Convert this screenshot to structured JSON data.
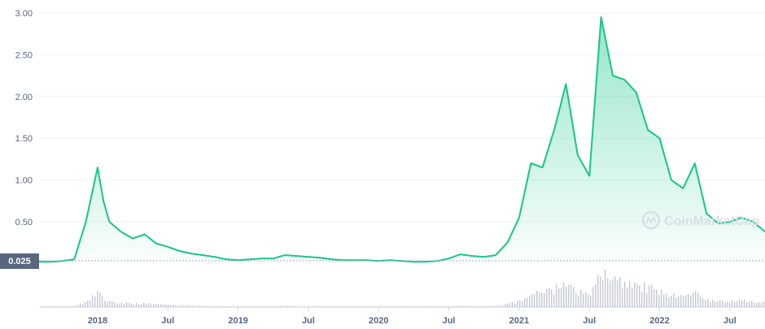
{
  "chart_data": {
    "type": "area",
    "title": "",
    "xlabel": "",
    "ylabel": "",
    "ylim": [
      0,
      3.0
    ],
    "grid": true,
    "colors": {
      "line": "#16c784",
      "fill_top": "#16c784",
      "volume": "#c3c8d0",
      "baseline_box": "#58667e"
    },
    "y_ticks": [
      "0.50",
      "1.00",
      "1.50",
      "2.00",
      "2.50",
      "3.00"
    ],
    "y_tick_values": [
      0.5,
      1.0,
      1.5,
      2.0,
      2.5,
      3.0
    ],
    "baseline_label": "0.025",
    "baseline_value": 0.025,
    "x_ticks": [
      "2018",
      "Jul",
      "2019",
      "Jul",
      "2020",
      "Jul",
      "2021",
      "Jul",
      "2022",
      "Jul"
    ],
    "x_tick_dates": [
      "2018-01",
      "2018-07",
      "2019-01",
      "2019-07",
      "2020-01",
      "2020-07",
      "2021-01",
      "2021-07",
      "2022-01",
      "2022-07"
    ],
    "x_range": [
      "2017-08",
      "2022-10"
    ],
    "watermark": "CoinMarketCap",
    "series": [
      {
        "x": [
          "2017-08",
          "2017-09",
          "2017-10",
          "2017-11",
          "2017-12",
          "2018-01",
          "2018-01",
          "2018-02",
          "2018-03",
          "2018-04",
          "2018-05",
          "2018-06",
          "2018-07",
          "2018-08",
          "2018-09",
          "2018-10",
          "2018-11",
          "2018-12",
          "2019-01",
          "2019-02",
          "2019-03",
          "2019-04",
          "2019-05",
          "2019-06",
          "2019-07",
          "2019-08",
          "2019-09",
          "2019-10",
          "2019-11",
          "2019-12",
          "2020-01",
          "2020-02",
          "2020-03",
          "2020-04",
          "2020-05",
          "2020-06",
          "2020-07",
          "2020-08",
          "2020-09",
          "2020-10",
          "2020-11",
          "2020-12",
          "2021-01",
          "2021-02",
          "2021-03",
          "2021-04",
          "2021-05",
          "2021-06",
          "2021-07",
          "2021-08",
          "2021-09",
          "2021-10",
          "2021-11",
          "2021-12",
          "2022-01",
          "2022-02",
          "2022-03",
          "2022-04",
          "2022-05",
          "2022-06",
          "2022-07",
          "2022-08",
          "2022-09",
          "2022-10"
        ],
        "values": [
          0.02,
          0.02,
          0.03,
          0.05,
          0.5,
          1.15,
          0.75,
          0.5,
          0.38,
          0.3,
          0.35,
          0.24,
          0.2,
          0.15,
          0.12,
          0.1,
          0.08,
          0.05,
          0.04,
          0.05,
          0.06,
          0.06,
          0.1,
          0.09,
          0.08,
          0.07,
          0.05,
          0.04,
          0.04,
          0.04,
          0.03,
          0.04,
          0.03,
          0.02,
          0.02,
          0.03,
          0.06,
          0.11,
          0.09,
          0.08,
          0.1,
          0.25,
          0.55,
          1.2,
          1.15,
          1.6,
          2.15,
          1.3,
          1.05,
          2.95,
          2.25,
          2.2,
          2.05,
          1.6,
          1.5,
          1.0,
          0.9,
          1.2,
          0.6,
          0.48,
          0.5,
          0.55,
          0.5,
          0.38
        ]
      }
    ]
  }
}
